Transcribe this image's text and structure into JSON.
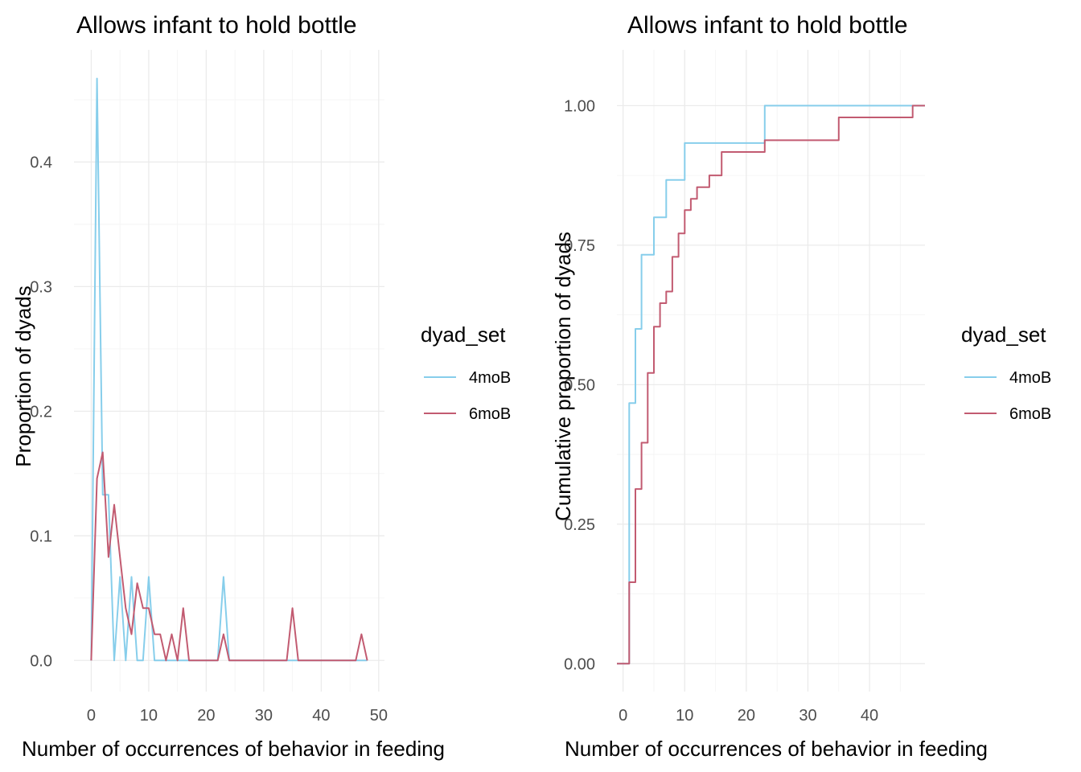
{
  "colors": {
    "4moB": "#87CEEB",
    "6moB": "#C25B71"
  },
  "chart_data": [
    {
      "type": "line",
      "title": "Allows infant to hold bottle",
      "xlabel": "Number of occurrences of behavior in feeding",
      "ylabel": "Proportion of dyads",
      "xlim": [
        -3,
        51
      ],
      "ylim": [
        -0.025,
        0.49
      ],
      "xticks": [
        0,
        10,
        20,
        30,
        40,
        50
      ],
      "yticks": [
        0.0,
        0.1,
        0.2,
        0.3,
        0.4
      ],
      "ytick_labels": [
        "0.0",
        "0.1",
        "0.2",
        "0.3",
        "0.4"
      ],
      "grid": true,
      "legend": {
        "title": "dyad_set",
        "position": "right"
      },
      "series": [
        {
          "name": "4moB",
          "x": [
            0,
            1,
            2,
            3,
            4,
            5,
            6,
            7,
            8,
            9,
            10,
            11,
            12,
            13,
            14,
            15,
            16,
            17,
            18,
            19,
            20,
            21,
            22,
            23,
            24,
            25,
            26,
            27,
            28,
            29,
            30,
            31,
            32,
            33,
            34,
            35,
            36,
            37,
            38,
            39,
            40,
            41,
            42,
            43,
            44,
            45,
            46,
            47,
            48
          ],
          "values": [
            0,
            0.467,
            0.133,
            0.133,
            0,
            0.067,
            0,
            0.067,
            0,
            0,
            0.067,
            0,
            0,
            0,
            0,
            0,
            0,
            0,
            0,
            0,
            0,
            0,
            0,
            0.067,
            0,
            0,
            0,
            0,
            0,
            0,
            0,
            0,
            0,
            0,
            0,
            0,
            0,
            0,
            0,
            0,
            0,
            0,
            0,
            0,
            0,
            0,
            0,
            0,
            0
          ]
        },
        {
          "name": "6moB",
          "x": [
            0,
            1,
            2,
            3,
            4,
            5,
            6,
            7,
            8,
            9,
            10,
            11,
            12,
            13,
            14,
            15,
            16,
            17,
            18,
            19,
            20,
            21,
            22,
            23,
            24,
            25,
            26,
            27,
            28,
            29,
            30,
            31,
            32,
            33,
            34,
            35,
            36,
            37,
            38,
            39,
            40,
            41,
            42,
            43,
            44,
            45,
            46,
            47,
            48
          ],
          "values": [
            0,
            0.146,
            0.167,
            0.083,
            0.125,
            0.083,
            0.042,
            0.021,
            0.062,
            0.042,
            0.042,
            0.021,
            0.021,
            0,
            0.021,
            0,
            0.042,
            0,
            0,
            0,
            0,
            0,
            0,
            0.021,
            0,
            0,
            0,
            0,
            0,
            0,
            0,
            0,
            0,
            0,
            0,
            0.042,
            0,
            0,
            0,
            0,
            0,
            0,
            0,
            0,
            0,
            0,
            0,
            0.021,
            0
          ]
        }
      ]
    },
    {
      "type": "line",
      "title": "Allows infant to hold bottle",
      "xlabel": "Number of occurrences of behavior in feeding",
      "ylabel": "Cumulative proportion of dyads",
      "xlim": [
        -1,
        49
      ],
      "ylim": [
        -0.05,
        1.1
      ],
      "xticks": [
        0,
        10,
        20,
        30,
        40
      ],
      "yticks": [
        0.0,
        0.25,
        0.5,
        0.75,
        1.0
      ],
      "ytick_labels": [
        "0.00",
        "0.25",
        "0.50",
        "0.75",
        "1.00"
      ],
      "grid": true,
      "legend": {
        "title": "dyad_set",
        "position": "right"
      },
      "series": [
        {
          "name": "4moB",
          "x": [
            1,
            2,
            3,
            5,
            7,
            10,
            23,
            47,
            49
          ],
          "values": [
            0.467,
            0.6,
            0.733,
            0.8,
            0.867,
            0.933,
            1.0,
            1.0,
            1.0
          ]
        },
        {
          "name": "6moB",
          "x": [
            1,
            2,
            3,
            4,
            5,
            6,
            7,
            8,
            9,
            10,
            11,
            12,
            14,
            16,
            23,
            35,
            47,
            49
          ],
          "values": [
            0.146,
            0.313,
            0.396,
            0.521,
            0.604,
            0.646,
            0.667,
            0.729,
            0.771,
            0.813,
            0.833,
            0.854,
            0.875,
            0.917,
            0.938,
            0.979,
            1.0,
            1.0
          ]
        }
      ]
    }
  ]
}
